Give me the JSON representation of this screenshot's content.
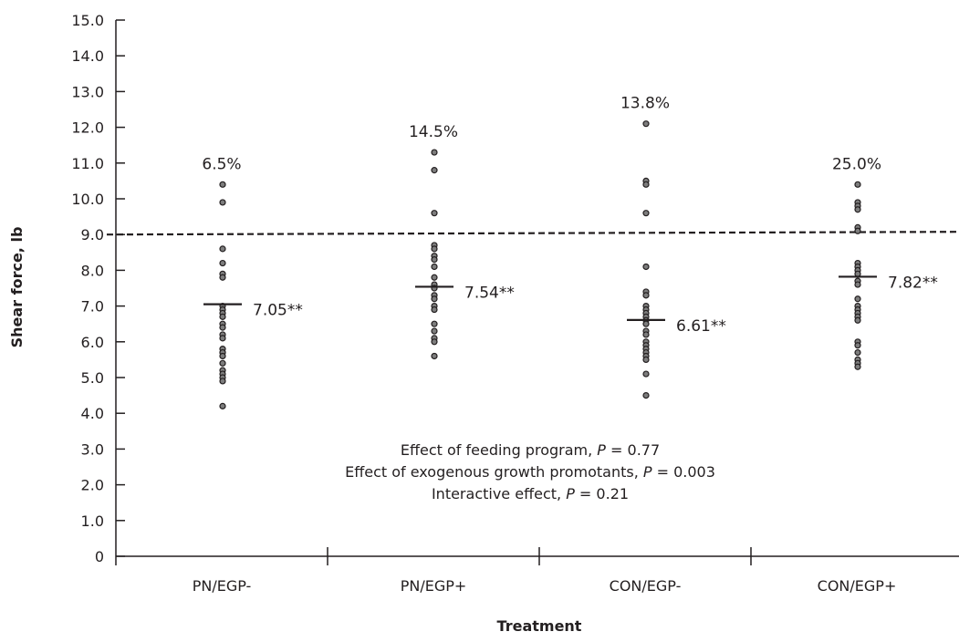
{
  "chart_data": {
    "type": "scatter",
    "xlabel": "Treatment",
    "ylabel": "Shear force, lb",
    "ylim": [
      0,
      15
    ],
    "y_ticks": [
      "0",
      "1.0",
      "2.0",
      "3.0",
      "4.0",
      "5.0",
      "6.0",
      "7.0",
      "8.0",
      "9.0",
      "10.0",
      "11.0",
      "12.0",
      "13.0",
      "14.0",
      "15.0"
    ],
    "categories": [
      "PN/EGP-",
      "PN/EGP+",
      "CON/EGP-",
      "CON/EGP+"
    ],
    "threshold": 9.0,
    "grid": false,
    "legend": "none",
    "series": [
      {
        "category": "PN/EGP-",
        "percent_label": "6.5%",
        "mean": 7.05,
        "mean_label": "7.05**",
        "points": [
          10.4,
          9.9,
          8.6,
          8.2,
          7.9,
          7.8,
          7.0,
          6.9,
          6.8,
          6.7,
          6.5,
          6.4,
          6.2,
          6.1,
          5.8,
          5.7,
          5.7,
          5.6,
          5.4,
          5.2,
          5.1,
          5.0,
          4.9,
          4.2
        ]
      },
      {
        "category": "PN/EGP+",
        "percent_label": "14.5%",
        "mean": 7.54,
        "mean_label": "7.54**",
        "points": [
          11.3,
          10.8,
          9.6,
          8.7,
          8.6,
          8.4,
          8.3,
          8.1,
          7.8,
          7.6,
          7.5,
          7.3,
          7.2,
          7.0,
          6.9,
          6.5,
          6.3,
          6.1,
          6.0,
          5.6
        ]
      },
      {
        "category": "CON/EGP-",
        "percent_label": "13.8%",
        "mean": 6.61,
        "mean_label": "6.61**",
        "points": [
          12.1,
          10.5,
          10.4,
          9.6,
          8.1,
          7.4,
          7.3,
          7.0,
          6.9,
          6.8,
          6.7,
          6.6,
          6.5,
          6.3,
          6.2,
          6.0,
          5.9,
          5.8,
          5.7,
          5.6,
          5.5,
          5.1,
          4.5
        ]
      },
      {
        "category": "CON/EGP+",
        "percent_label": "25.0%",
        "mean": 7.82,
        "mean_label": "7.82**",
        "points": [
          10.4,
          9.9,
          9.8,
          9.7,
          9.2,
          9.1,
          8.2,
          8.1,
          8.0,
          7.9,
          7.7,
          7.6,
          7.2,
          7.0,
          6.9,
          6.8,
          6.7,
          6.6,
          6.0,
          5.9,
          5.7,
          5.5,
          5.4,
          5.3
        ]
      }
    ],
    "annotations": [
      {
        "prefix": "Effect of feeding program, ",
        "p": "P",
        "suffix": " = 0.77"
      },
      {
        "prefix": "Effect of exogenous growth promotants, ",
        "p": "P",
        "suffix": " = 0.003"
      },
      {
        "prefix": "Interactive effect, ",
        "p": "P",
        "suffix": " = 0.21"
      }
    ]
  }
}
